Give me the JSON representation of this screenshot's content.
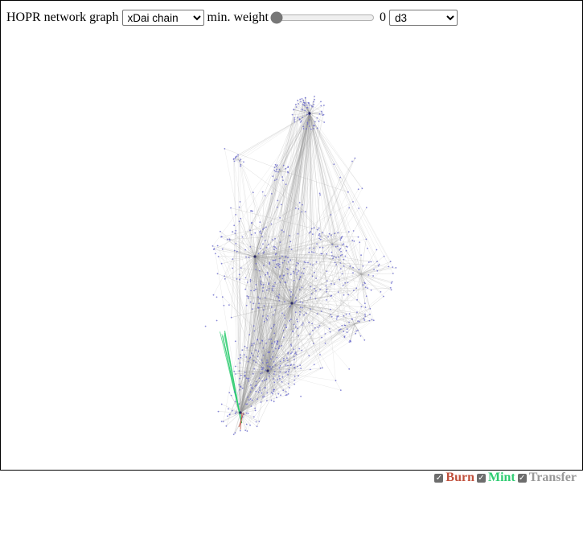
{
  "header": {
    "title": "HOPR network graph",
    "chain_select": {
      "selected": "xDai chain",
      "options": [
        "xDai chain"
      ]
    },
    "weight_label": "min. weight",
    "weight_value": "0",
    "weight_level": 0,
    "layout_select": {
      "selected": "d3",
      "options": [
        "d3"
      ]
    }
  },
  "legend": {
    "items": [
      {
        "label": "Burn",
        "checked": true,
        "color": "#c0503c"
      },
      {
        "label": "Mint",
        "checked": true,
        "color": "#2ecc71"
      },
      {
        "label": "Transfer",
        "checked": true,
        "color": "#999999"
      }
    ]
  },
  "graph": {
    "node_color": "#6a6acd",
    "edge_color": "#9a9a9a"
  }
}
